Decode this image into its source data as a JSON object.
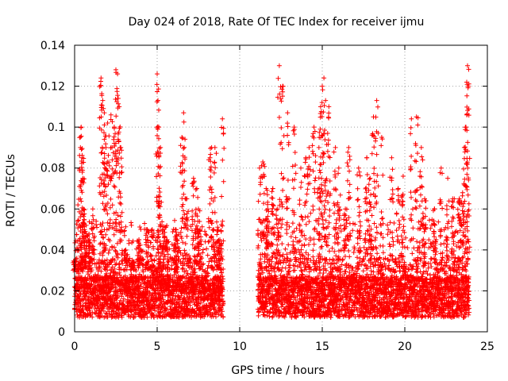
{
  "chart_data": {
    "type": "scatter",
    "title": "Day 024 of 2018, Rate Of TEC Index for receiver ijmu",
    "xlabel": "GPS time / hours",
    "ylabel": "ROTI / TECUs",
    "xlim": [
      0,
      25
    ],
    "ylim": [
      0,
      0.14
    ],
    "x_ticks": [
      0,
      5,
      10,
      15,
      20,
      25
    ],
    "x_tick_labels": [
      "0",
      "5",
      "10",
      "15",
      "20",
      "25"
    ],
    "y_ticks": [
      0,
      0.02,
      0.04,
      0.06,
      0.08,
      0.1,
      0.12,
      0.14
    ],
    "y_tick_labels": [
      "0",
      "0.02",
      "0.04",
      "0.06",
      "0.08",
      "0.1",
      "0.12",
      "0.14"
    ],
    "grid": true,
    "marker": "+",
    "marker_color": "#ff0000",
    "axis_color": "#000000",
    "grid_color": "#a0a0a0",
    "data_gap_hours": [
      9.0,
      11.1
    ],
    "series": [
      {
        "name": "ROTI",
        "x": [
          0.0,
          0.2,
          0.35,
          0.4,
          0.45,
          0.5,
          0.55,
          0.6,
          0.7,
          0.9,
          1.1,
          1.6,
          1.7,
          1.8,
          1.9,
          2.0,
          2.2,
          2.4,
          2.5,
          2.6,
          2.7,
          2.8,
          3.1,
          3.5,
          3.9,
          4.4,
          4.7,
          5.0,
          5.05,
          5.1,
          5.2,
          5.4,
          5.6,
          6.1,
          6.2,
          6.5,
          6.6,
          6.8,
          7.2,
          7.4,
          7.5,
          7.6,
          8.2,
          8.3,
          8.5,
          8.7,
          8.8,
          8.95,
          11.2,
          11.4,
          11.6,
          11.7,
          12.0,
          12.3,
          12.4,
          12.6,
          12.9,
          13.3,
          13.7,
          14.0,
          14.2,
          14.5,
          14.8,
          14.9,
          15.0,
          15.1,
          15.2,
          15.4,
          15.8,
          16.0,
          16.4,
          16.6,
          17.2,
          17.7,
          17.9,
          18.1,
          18.3,
          18.6,
          19.2,
          19.6,
          19.9,
          20.4,
          20.7,
          21.0,
          21.2,
          21.8,
          22.2,
          22.6,
          22.9,
          23.3,
          23.5,
          23.6,
          23.7,
          23.8,
          23.85
        ],
        "y": [
          0.022,
          0.062,
          0.09,
          0.1,
          0.085,
          0.075,
          0.06,
          0.05,
          0.052,
          0.045,
          0.06,
          0.124,
          0.113,
          0.107,
          0.09,
          0.102,
          0.106,
          0.1,
          0.128,
          0.126,
          0.11,
          0.09,
          0.04,
          0.035,
          0.045,
          0.05,
          0.05,
          0.126,
          0.113,
          0.1,
          0.09,
          0.05,
          0.045,
          0.05,
          0.045,
          0.095,
          0.107,
          0.065,
          0.075,
          0.07,
          0.06,
          0.05,
          0.085,
          0.09,
          0.09,
          0.05,
          0.045,
          0.104,
          0.08,
          0.083,
          0.07,
          0.06,
          0.07,
          0.06,
          0.13,
          0.12,
          0.107,
          0.1,
          0.08,
          0.085,
          0.09,
          0.1,
          0.09,
          0.11,
          0.12,
          0.124,
          0.113,
          0.11,
          0.09,
          0.08,
          0.06,
          0.09,
          0.08,
          0.085,
          0.075,
          0.105,
          0.113,
          0.095,
          0.085,
          0.07,
          0.076,
          0.104,
          0.105,
          0.09,
          0.065,
          0.06,
          0.08,
          0.075,
          0.065,
          0.065,
          0.068,
          0.09,
          0.1,
          0.13,
          0.12
        ],
        "dense_baseline": "approximately 0.005 to 0.035 continuously over 0–9 h and 11.1–23.9 h"
      }
    ]
  }
}
